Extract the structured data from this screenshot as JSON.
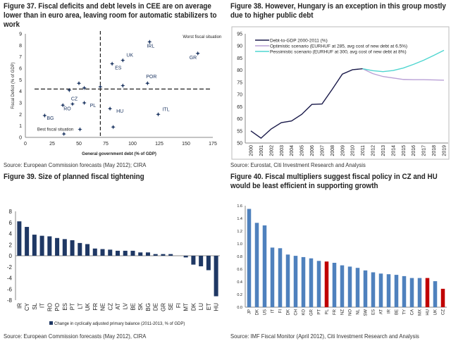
{
  "figures": {
    "f37": {
      "title": "Figure 37. Fiscal deficits and debt levels in CEE are on average lower than in euro area, leaving room for automatic stabilizers to work",
      "source": "Source: European Commission forecasts (May 2012); CIRA"
    },
    "f38": {
      "title": "Figure 38. However, Hungary is an exception in this group mostly due to higher public debt",
      "source": "Source: Eurostat, Citi Investment Research and Analysis"
    },
    "f39": {
      "title": "Figure 39. Size of planned fiscal tightening",
      "source": "Source: European Commission forecasts (May 2012), CIRA"
    },
    "f40": {
      "title": "Figure 40. Fiscal multipliers suggest fiscal policy in CZ and HU would be least efficient in supporting growth",
      "source": "Source: IMF Fiscal Monitor (April 2012), Citi Investment Research and Analysis"
    }
  },
  "chart_data": [
    {
      "type": "scatter",
      "xlabel": "General government debt (% of GDP)",
      "ylabel": "Fiscal Deficit (% of GDP)",
      "xlim": [
        0,
        175
      ],
      "ylim": [
        0,
        9
      ],
      "xticks": [
        0,
        25,
        50,
        75,
        100,
        125,
        150,
        175
      ],
      "yticks": [
        0,
        1,
        2,
        3,
        4,
        5,
        6,
        7,
        8,
        9
      ],
      "reference_lines": {
        "x": 70,
        "y": 4.2
      },
      "annotations": [
        {
          "text": "Worst fiscal situation",
          "x": 165,
          "y": 9
        },
        {
          "text": "Best fiscal situation",
          "x": 28,
          "y": 0.7
        }
      ],
      "color": "#1f3864",
      "points": [
        {
          "label": "BG",
          "x": 18,
          "y": 1.9
        },
        {
          "label": "RO",
          "x": 35,
          "y": 2.8
        },
        {
          "label": "",
          "x": 41,
          "y": 4.1
        },
        {
          "label": "CZ",
          "x": 44,
          "y": 2.9
        },
        {
          "label": "PL",
          "x": 55,
          "y": 3.0
        },
        {
          "label": "",
          "x": 50,
          "y": 4.7
        },
        {
          "label": "",
          "x": 55,
          "y": 4.3
        },
        {
          "label": "",
          "x": 70,
          "y": 4.4
        },
        {
          "label": "",
          "x": 51,
          "y": 0.7
        },
        {
          "label": "",
          "x": 36,
          "y": 0.3
        },
        {
          "label": "ES",
          "x": 81,
          "y": 6.4
        },
        {
          "label": "UK",
          "x": 91,
          "y": 6.7
        },
        {
          "label": "IRL",
          "x": 116,
          "y": 8.3
        },
        {
          "label": "GR",
          "x": 161,
          "y": 7.3
        },
        {
          "label": "POR",
          "x": 114,
          "y": 4.7
        },
        {
          "label": "",
          "x": 91,
          "y": 4.5
        },
        {
          "label": "HU",
          "x": 79,
          "y": 2.5
        },
        {
          "label": "",
          "x": 82,
          "y": 0.9
        },
        {
          "label": "ITL",
          "x": 124,
          "y": 2.0
        }
      ]
    },
    {
      "type": "line",
      "ylim": [
        50,
        95
      ],
      "yticks": [
        50,
        55,
        60,
        65,
        70,
        75,
        80,
        85,
        90,
        95
      ],
      "x": [
        2000,
        2001,
        2002,
        2003,
        2004,
        2005,
        2006,
        2007,
        2008,
        2009,
        2010,
        2011,
        2012,
        2013,
        2014,
        2015,
        2016,
        2017,
        2018,
        2019
      ],
      "legend": "top-left",
      "series": [
        {
          "name": "Debt-to-GDP 2000-2011  (%)",
          "color": "#1a1a4a",
          "x": [
            2000,
            2001,
            2002,
            2003,
            2004,
            2005,
            2006,
            2007,
            2008,
            2009,
            2010,
            2011
          ],
          "values": [
            55,
            52,
            55.8,
            58.4,
            59.1,
            61.8,
            65.9,
            66.1,
            72.1,
            78.4,
            80.2,
            80.6
          ]
        },
        {
          "name": "Optimistic scenario (EURHUF at 285, avg cost of new debt at 6.5%)",
          "color": "#b9a0d6",
          "x": [
            2011,
            2012,
            2013,
            2014,
            2015,
            2016,
            2017,
            2018,
            2019
          ],
          "values": [
            80.6,
            78.6,
            77.4,
            76.8,
            76.2,
            76.1,
            76.1,
            76.0,
            75.9
          ]
        },
        {
          "name": "Pessimistic scenario (EURHUF at 300, avg cost of new debt at 8%)",
          "color": "#4fd6d0",
          "x": [
            2011,
            2012,
            2013,
            2014,
            2015,
            2016,
            2017,
            2018,
            2019
          ],
          "values": [
            80.6,
            79.8,
            79.4,
            79.9,
            80.9,
            82.4,
            84.1,
            86.1,
            88.2
          ]
        }
      ]
    },
    {
      "type": "bar",
      "ylim": [
        -8,
        8
      ],
      "yticks": [
        -8,
        -6,
        -4,
        -2,
        0,
        2,
        4,
        6,
        8
      ],
      "color": "#1f3864",
      "legend": "bottom",
      "series": [
        {
          "name": "Change in cyclically adjusted primary balance (2011-2013, %  of GDP)"
        }
      ],
      "categories": [
        "IR",
        "CY",
        "SL",
        "IT",
        "RO",
        "PO",
        "ES",
        "PT",
        "LT",
        "UK",
        "FR",
        "NE",
        "CZ",
        "AT",
        "LV",
        "BE",
        "SK",
        "BG",
        "DE",
        "GR",
        "SE",
        "FI",
        "MT",
        "DK",
        "LU",
        "ET",
        "HU"
      ],
      "values": [
        6.2,
        5.2,
        3.8,
        3.6,
        3.5,
        3.2,
        3.0,
        2.8,
        2.3,
        2.1,
        1.3,
        1.2,
        1.1,
        0.9,
        0.9,
        0.9,
        0.6,
        0.6,
        0.3,
        0.3,
        0.3,
        0,
        -0.3,
        -1.6,
        -1.9,
        -2.6,
        -7.3
      ]
    },
    {
      "type": "bar",
      "ylim": [
        0,
        1.6
      ],
      "yticks": [
        0.0,
        0.2,
        0.4,
        0.6,
        0.8,
        1.0,
        1.2,
        1.4,
        1.6
      ],
      "color": "#4f81bd",
      "highlight_color": "#c00000",
      "highlight": [
        "PL",
        "HU",
        "CZ"
      ],
      "categories": [
        "JP",
        "DK",
        "US",
        "IT",
        "FI",
        "DK",
        "CH",
        "KO",
        "GR",
        "PT",
        "PL",
        "FR",
        "NZ",
        "NO",
        "NL",
        "SW",
        "ES",
        "AT",
        "IR",
        "BE",
        "TY",
        "CA",
        "MX",
        "HU",
        "UK",
        "CZ"
      ],
      "values": [
        1.55,
        1.33,
        1.29,
        0.94,
        0.93,
        0.83,
        0.81,
        0.79,
        0.77,
        0.73,
        0.72,
        0.7,
        0.66,
        0.64,
        0.62,
        0.58,
        0.55,
        0.53,
        0.52,
        0.51,
        0.49,
        0.46,
        0.46,
        0.46,
        0.41,
        0.29
      ]
    }
  ]
}
